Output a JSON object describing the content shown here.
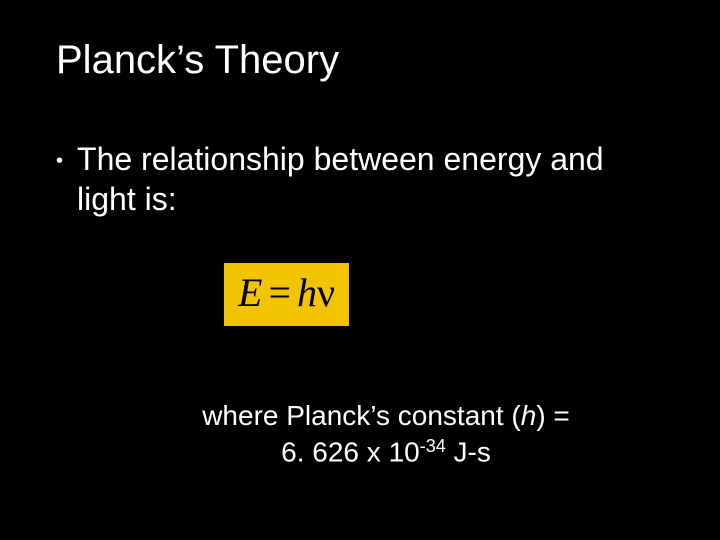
{
  "title": "Planck’s Theory",
  "bullet": "The relationship between energy and light is:",
  "formula": {
    "E": "E",
    "eq": "=",
    "h": "h",
    "nu": "ν",
    "bg": "#f2c400",
    "fg": "#000000"
  },
  "constant": {
    "prefix": "where Planck’s constant (",
    "hvar": "h",
    "suffix": ") =",
    "value_main": "6. 626 x 10",
    "value_exp": "-34",
    "value_unit": " J-s"
  },
  "colors": {
    "background": "#000000",
    "text": "#ffffff"
  },
  "fonts": {
    "body": "Arial",
    "formula": "Times New Roman"
  }
}
